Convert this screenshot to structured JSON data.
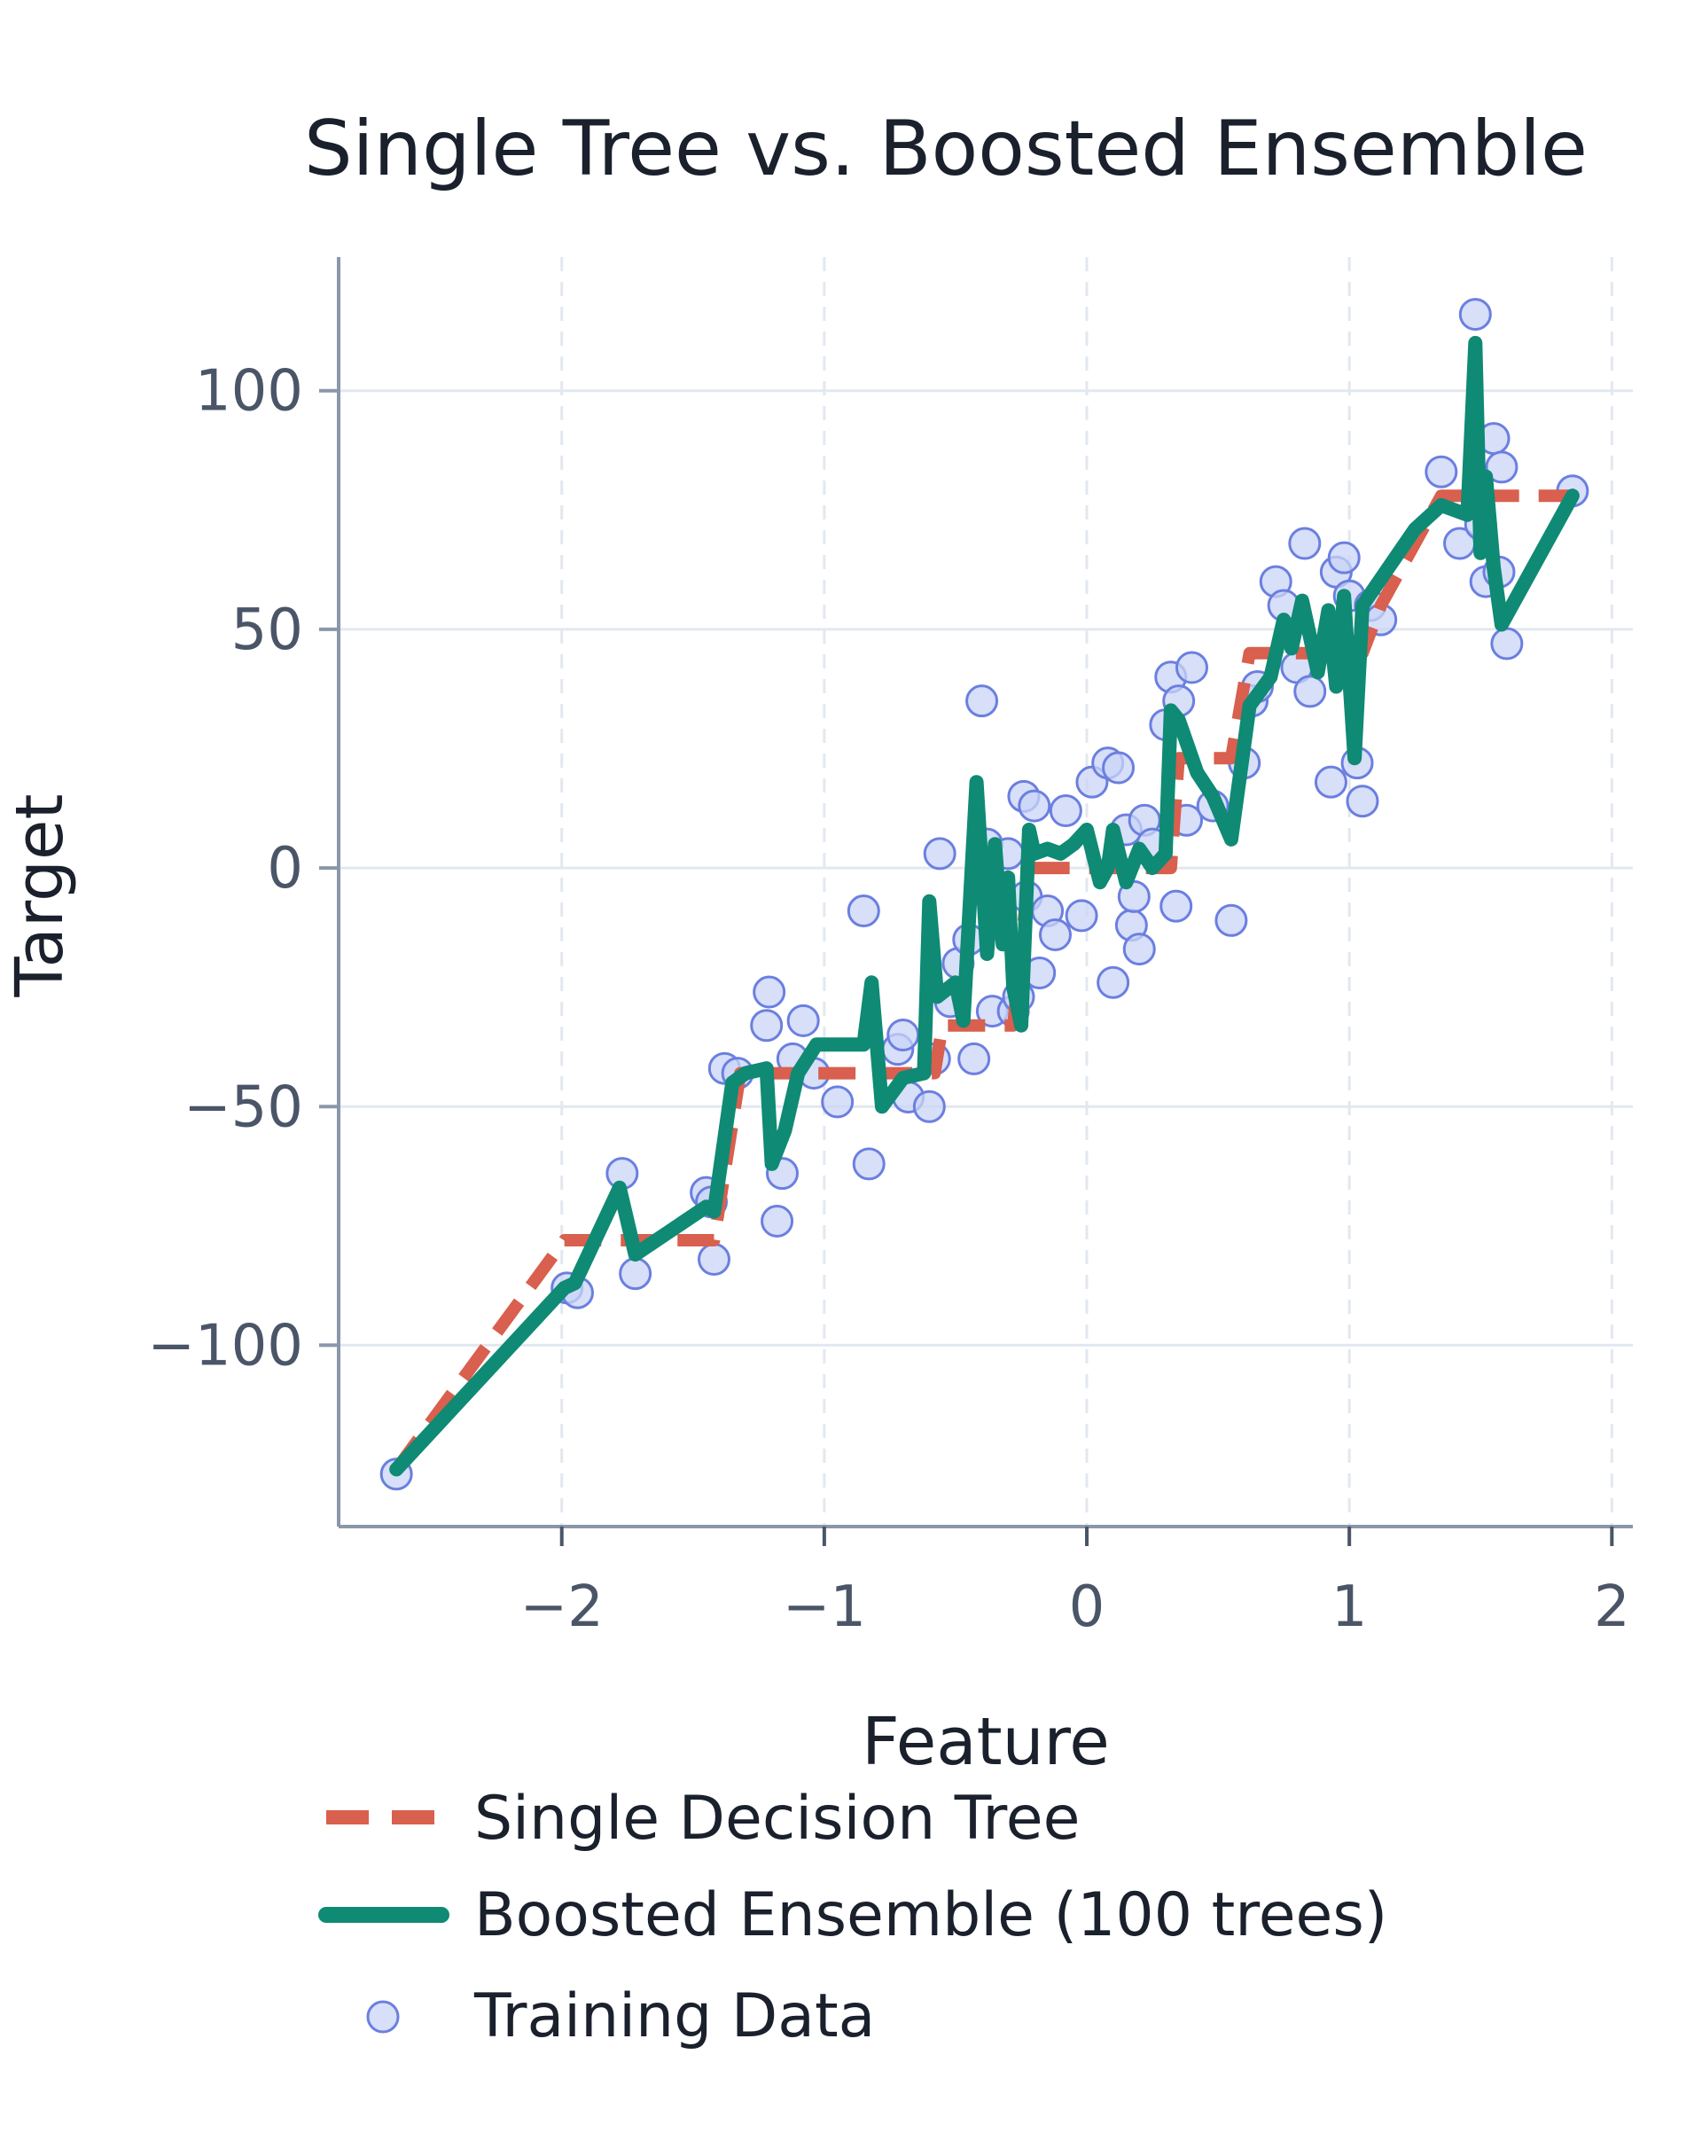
{
  "chart_data": {
    "type": "line",
    "title": "Single Tree vs. Boosted Ensemble",
    "xlabel": "Feature",
    "ylabel": "Target",
    "xlim": [
      -2.85,
      2.08
    ],
    "ylim": [
      -138,
      128
    ],
    "xticks": [
      -2,
      -1,
      0,
      1,
      2
    ],
    "xtick_labels": [
      "−2",
      "−1",
      "0",
      "1",
      "2"
    ],
    "yticks": [
      -100,
      -50,
      0,
      50,
      100
    ],
    "ytick_labels": [
      "−100",
      "−50",
      "0",
      "50",
      "100"
    ],
    "grid": true,
    "legend_position": "bottom",
    "colors": {
      "tree": "#d95f4e",
      "ensemble": "#0f8a74",
      "scatter_fill": "#c9d4f7",
      "scatter_edge": "#6b7fe0",
      "grid": "#e2e8f0",
      "axis": "#8a97a8"
    },
    "series": [
      {
        "name": "Single Decision Tree",
        "style": "dashed",
        "x": [
          -2.63,
          -1.99,
          -1.42,
          -1.32,
          -0.58,
          -0.55,
          -0.28,
          -0.22,
          0.32,
          0.35,
          0.55,
          0.62,
          1.05,
          1.12,
          1.35,
          1.4,
          1.85
        ],
        "y": [
          -126,
          -78,
          -78,
          -43,
          -43,
          -33,
          -33,
          0,
          0,
          23,
          23,
          45,
          45,
          55,
          78,
          78,
          78
        ]
      },
      {
        "name": "Boosted Ensemble (100 trees)",
        "style": "solid",
        "x": [
          -2.63,
          -1.99,
          -1.95,
          -1.78,
          -1.72,
          -1.45,
          -1.42,
          -1.35,
          -1.3,
          -1.22,
          -1.2,
          -1.15,
          -1.1,
          -1.03,
          -0.85,
          -0.82,
          -0.78,
          -0.7,
          -0.62,
          -0.6,
          -0.57,
          -0.5,
          -0.47,
          -0.42,
          -0.38,
          -0.35,
          -0.32,
          -0.3,
          -0.28,
          -0.25,
          -0.22,
          -0.2,
          -0.15,
          -0.1,
          -0.05,
          0.0,
          0.05,
          0.08,
          0.1,
          0.15,
          0.2,
          0.25,
          0.3,
          0.32,
          0.35,
          0.42,
          0.48,
          0.55,
          0.62,
          0.7,
          0.75,
          0.78,
          0.82,
          0.88,
          0.92,
          0.95,
          0.98,
          1.02,
          1.05,
          1.25,
          1.35,
          1.45,
          1.48,
          1.5,
          1.52,
          1.55,
          1.58,
          1.85
        ],
        "y": [
          -126,
          -88,
          -87,
          -67,
          -81,
          -71,
          -72,
          -45,
          -43,
          -42,
          -62,
          -55,
          -43,
          -37,
          -37,
          -24,
          -50,
          -44,
          -43,
          -7,
          -27,
          -24,
          -32,
          18,
          -18,
          5,
          -16,
          -2,
          -25,
          -33,
          8,
          3,
          4,
          3,
          5,
          8,
          -3,
          0,
          8,
          -3,
          4,
          0,
          3,
          33,
          31,
          20,
          15,
          6,
          34,
          40,
          52,
          46,
          56,
          41,
          54,
          38,
          57,
          23,
          55,
          71,
          76,
          74,
          110,
          66,
          82,
          63,
          51,
          78
        ]
      },
      {
        "name": "Training Data",
        "style": "scatter",
        "x": [
          -2.63,
          -1.98,
          -1.94,
          -1.77,
          -1.72,
          -1.45,
          -1.43,
          -1.42,
          -1.38,
          -1.33,
          -1.22,
          -1.21,
          -1.18,
          -1.16,
          -1.12,
          -1.08,
          -1.04,
          -0.95,
          -0.85,
          -0.83,
          -0.72,
          -0.7,
          -0.68,
          -0.6,
          -0.58,
          -0.56,
          -0.52,
          -0.49,
          -0.45,
          -0.43,
          -0.4,
          -0.38,
          -0.36,
          -0.33,
          -0.3,
          -0.28,
          -0.26,
          -0.24,
          -0.23,
          -0.2,
          -0.18,
          -0.15,
          -0.12,
          -0.08,
          -0.02,
          0.02,
          0.08,
          0.1,
          0.12,
          0.15,
          0.17,
          0.18,
          0.2,
          0.22,
          0.25,
          0.3,
          0.32,
          0.34,
          0.35,
          0.38,
          0.4,
          0.48,
          0.55,
          0.6,
          0.63,
          0.65,
          0.72,
          0.75,
          0.8,
          0.83,
          0.85,
          0.93,
          0.95,
          0.98,
          1.0,
          1.03,
          1.05,
          1.08,
          1.12,
          1.35,
          1.42,
          1.48,
          1.5,
          1.52,
          1.55,
          1.57,
          1.58,
          1.6,
          1.85
        ],
        "y": [
          -127,
          -88,
          -89,
          -64,
          -85,
          -68,
          -70,
          -82,
          -42,
          -43,
          -33,
          -26,
          -74,
          -64,
          -40,
          -32,
          -43,
          -49,
          -9,
          -62,
          -38,
          -35,
          -48,
          -50,
          -40,
          3,
          -28,
          -20,
          -15,
          -40,
          35,
          5,
          -30,
          -10,
          3,
          -30,
          -27,
          15,
          -6,
          13,
          -22,
          -9,
          -14,
          12,
          -10,
          18,
          22,
          -24,
          21,
          8,
          -12,
          -6,
          -17,
          10,
          5,
          30,
          40,
          -8,
          35,
          10,
          42,
          13,
          -11,
          22,
          35,
          38,
          60,
          55,
          42,
          68,
          37,
          18,
          62,
          65,
          57,
          22,
          14,
          55,
          52,
          83,
          68,
          116,
          72,
          60,
          90,
          62,
          84,
          47,
          79
        ]
      }
    ],
    "legend": [
      "Single Decision Tree",
      "Boosted Ensemble (100 trees)",
      "Training Data"
    ]
  }
}
